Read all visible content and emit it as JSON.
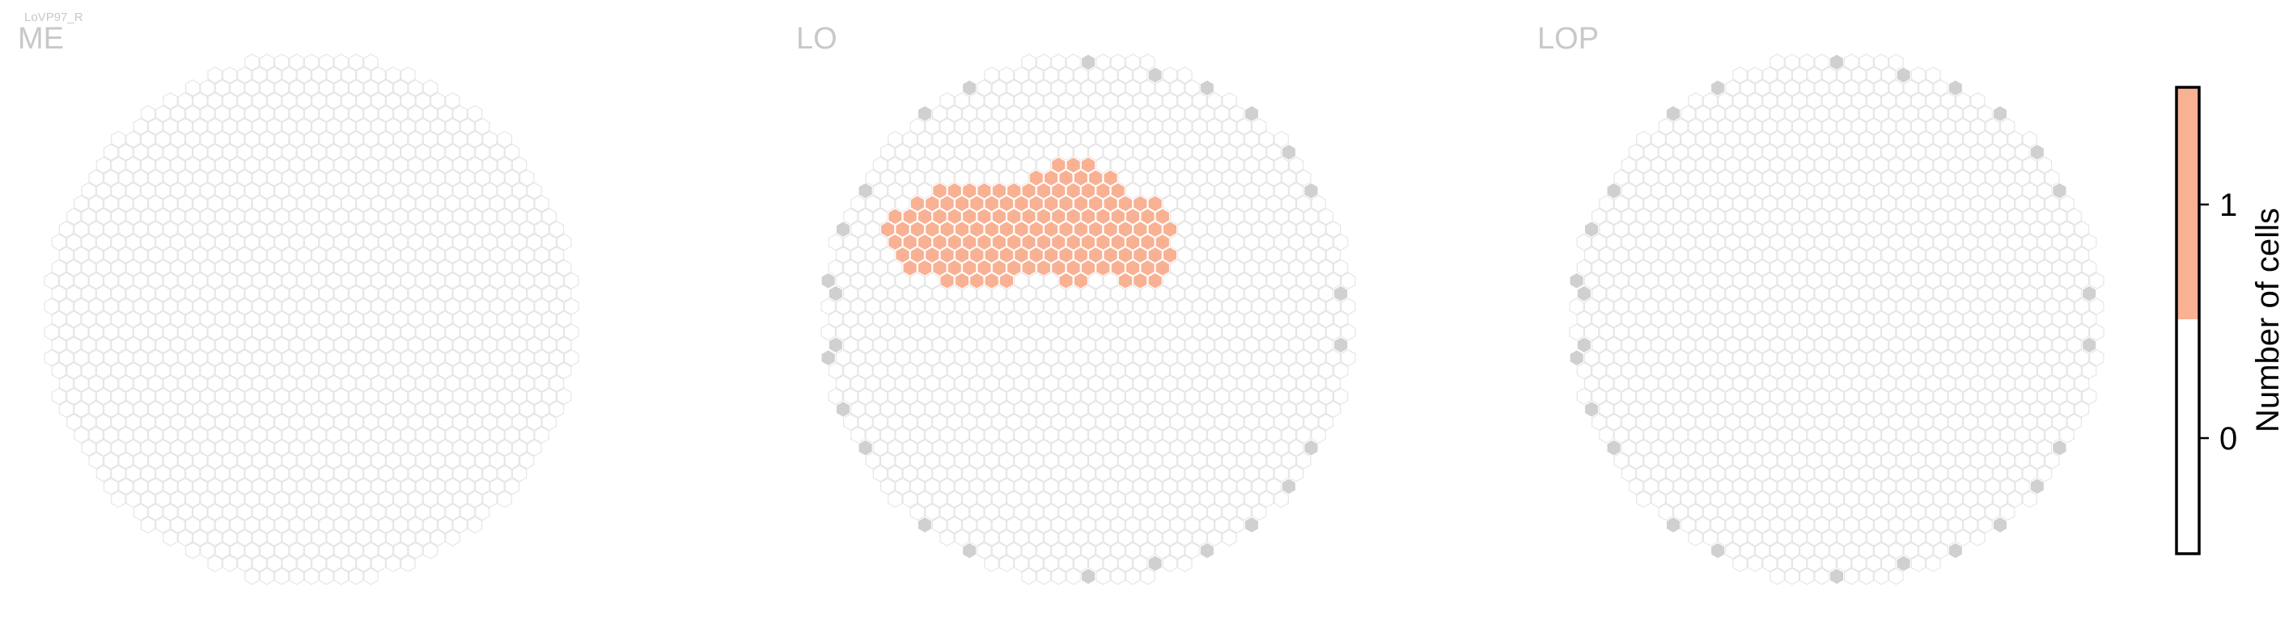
{
  "cell_type": "LoVP97_R",
  "colors": {
    "empty_stroke": "#e6e6e6",
    "boundary_fill": "#d0d0d0",
    "value_fill": "#f9b193",
    "title": "#c8c8c8"
  },
  "chart_data": {
    "type": "heatmap",
    "panels": [
      {
        "title": "ME"
      },
      {
        "title": "LO"
      },
      {
        "title": "LOP"
      }
    ],
    "colorbar": {
      "label": "Number of cells",
      "ticks": [
        "0",
        "1"
      ],
      "range": [
        0,
        1
      ],
      "colors": [
        "#ffffff",
        "#f9b193"
      ]
    }
  }
}
